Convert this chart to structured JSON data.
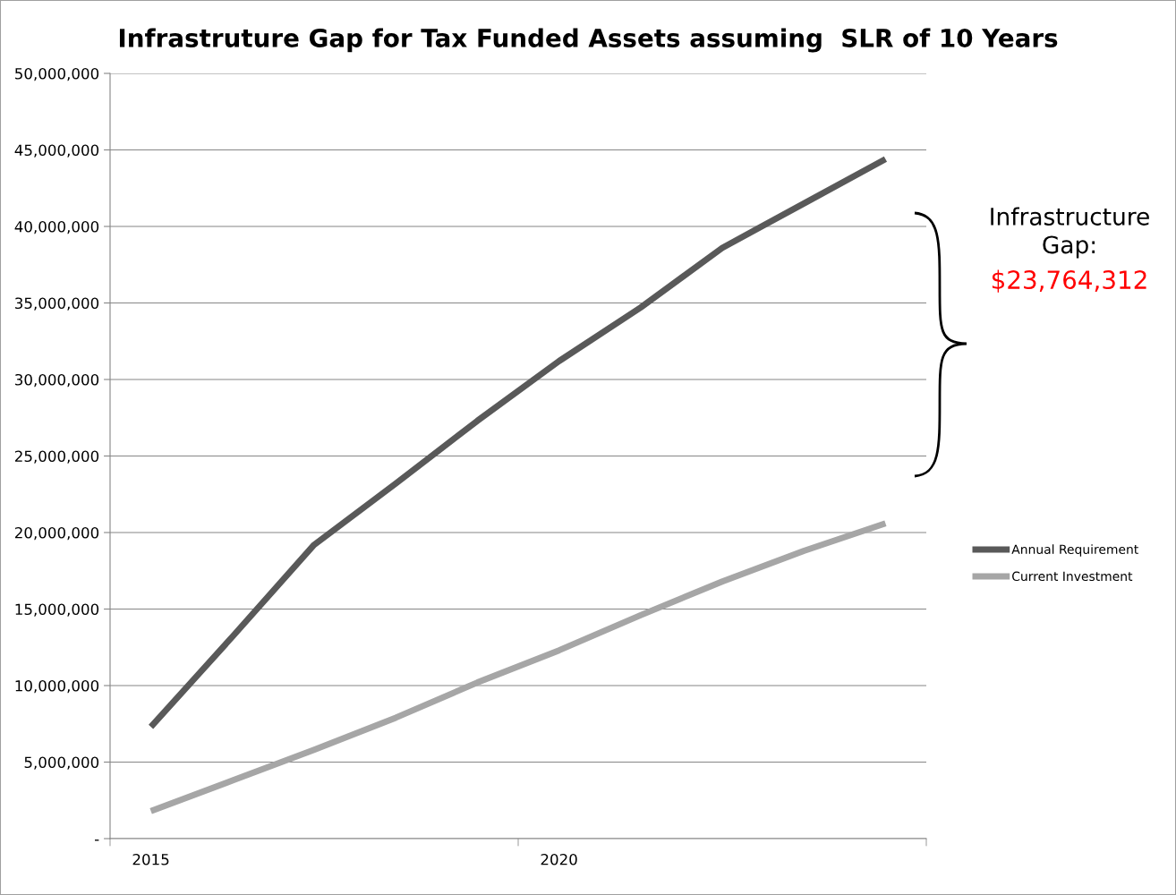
{
  "chart_data": {
    "type": "line",
    "title": "Infrastruture Gap for Tax Funded Assets assuming  SLR of 10 Years",
    "categories": [
      "2015",
      null,
      null,
      null,
      null,
      "2020",
      null,
      null,
      null,
      null
    ],
    "series": [
      {
        "name": "Annual Requirement",
        "color": "#595959",
        "values": [
          7300000,
          13200000,
          19200000,
          23200000,
          27300000,
          31200000,
          34700000,
          38600000,
          41500000,
          44400000
        ]
      },
      {
        "name": "Current Investment",
        "color": "#a6a6a6",
        "values": [
          1800000,
          3800000,
          5800000,
          7900000,
          10200000,
          12300000,
          14600000,
          16800000,
          18800000,
          20600000
        ]
      }
    ],
    "ylim": [
      0,
      50000000
    ],
    "yticks": [
      {
        "value": 0,
        "label": "-"
      },
      {
        "value": 5000000,
        "label": "5,000,000"
      },
      {
        "value": 10000000,
        "label": "10,000,000"
      },
      {
        "value": 15000000,
        "label": "15,000,000"
      },
      {
        "value": 20000000,
        "label": "20,000,000"
      },
      {
        "value": 25000000,
        "label": "25,000,000"
      },
      {
        "value": 30000000,
        "label": "30,000,000"
      },
      {
        "value": 35000000,
        "label": "35,000,000"
      },
      {
        "value": 40000000,
        "label": "40,000,000"
      },
      {
        "value": 45000000,
        "label": "45,000,000"
      },
      {
        "value": 50000000,
        "label": "50,000,000"
      }
    ],
    "grid": "y",
    "legend": "right",
    "marker": "none",
    "line_style": "solid",
    "annotations": [
      "Infrastructure\nGap:",
      "$23,764,312"
    ]
  }
}
